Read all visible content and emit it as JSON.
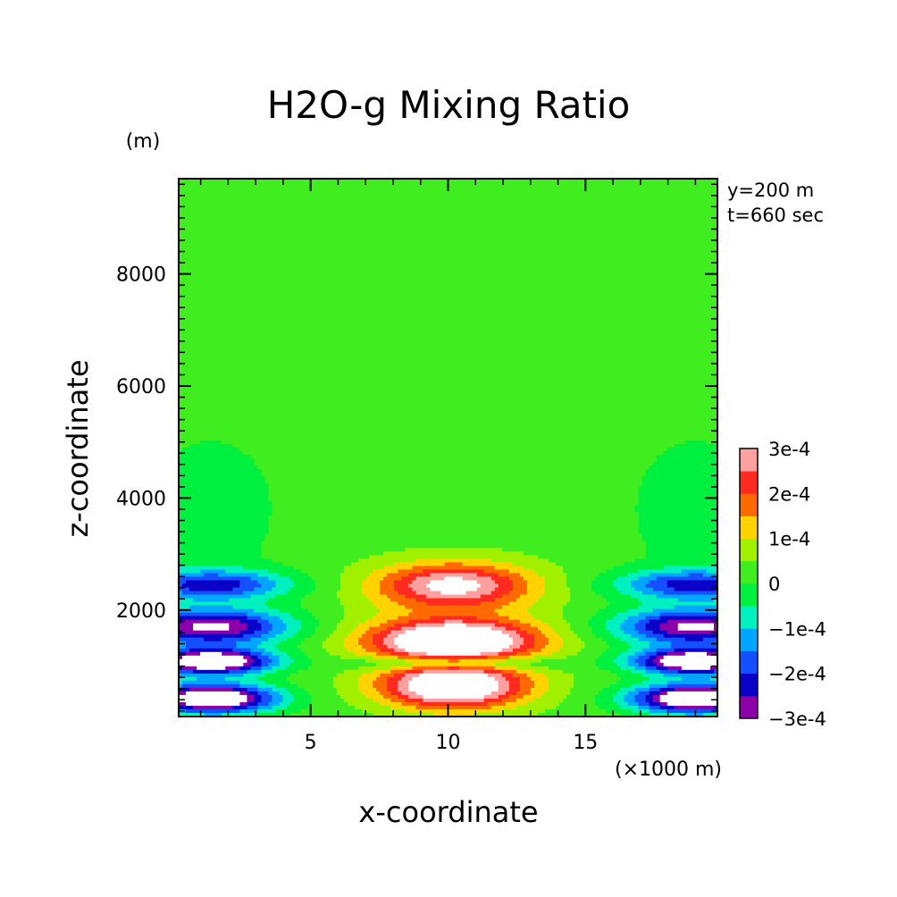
{
  "chart_data": {
    "type": "heatmap",
    "subtype": "filled-contour",
    "title": "H2O-g Mixing Ratio",
    "xlabel": "x-coordinate",
    "ylabel": "z-coordinate",
    "x_unit": "(×1000 m)",
    "y_unit": "(m)",
    "annotations": [
      "y=200 m",
      "t=660 sec"
    ],
    "xlim": [
      0.2,
      19.8
    ],
    "ylim": [
      100,
      9700
    ],
    "x_ticks": [
      5,
      10,
      15
    ],
    "y_ticks": [
      2000,
      4000,
      6000,
      8000
    ],
    "grid": false,
    "colorbar": {
      "orientation": "vertical",
      "placement": "right",
      "tick_labels": [
        "3e-4",
        "2e-4",
        "1e-4",
        "0",
        "−1e-4",
        "−2e-4",
        "−3e-4"
      ],
      "levels": [
        -0.0003,
        -0.00025,
        -0.0002,
        -0.00015,
        -0.0001,
        -5e-05,
        0,
        5e-05,
        0.0001,
        0.00015,
        0.0002,
        0.00025,
        0.0003
      ],
      "colors": [
        "#8b00a8",
        "#0a00c8",
        "#1450ff",
        "#00a6ff",
        "#00f0c0",
        "#00f040",
        "#40ee20",
        "#a0f000",
        "#ffd200",
        "#ff6a00",
        "#ff2a20",
        "#ffa0a0"
      ]
    },
    "field_summary": {
      "background_value": 3e-05,
      "features": [
        {
          "name": "central moist core (lower)",
          "x_center": 10.2,
          "z_center": 650,
          "peak_value": 0.00035
        },
        {
          "name": "central moist core (upper)",
          "x_center": 10.2,
          "z_center": 1400,
          "peak_value": 0.00035
        },
        {
          "name": "central moist band",
          "x_center": 10.2,
          "z_center": 2450,
          "peak_value": 0.00025
        },
        {
          "name": "left dry lobe (lower)",
          "x_center": 1.5,
          "z_center": 450,
          "peak_value": -0.00035
        },
        {
          "name": "left dry lobe (upper)",
          "x_center": 1.5,
          "z_center": 1100,
          "peak_value": -0.00035
        },
        {
          "name": "left dry band",
          "x_center": 2.0,
          "z_center": 1700,
          "peak_value": -0.0003
        },
        {
          "name": "left dry band (upper)",
          "x_center": 2.0,
          "z_center": 2450,
          "peak_value": -0.0002
        },
        {
          "name": "right dry lobe (lower)",
          "x_center": 18.5,
          "z_center": 450,
          "peak_value": -0.00035
        },
        {
          "name": "right dry lobe (upper)",
          "x_center": 18.5,
          "z_center": 1100,
          "peak_value": -0.00035
        },
        {
          "name": "right dry band",
          "x_center": 18.0,
          "z_center": 1700,
          "peak_value": -0.0003
        },
        {
          "name": "right dry band (upper)",
          "x_center": 18.0,
          "z_center": 2450,
          "peak_value": -0.0002
        }
      ]
    }
  }
}
